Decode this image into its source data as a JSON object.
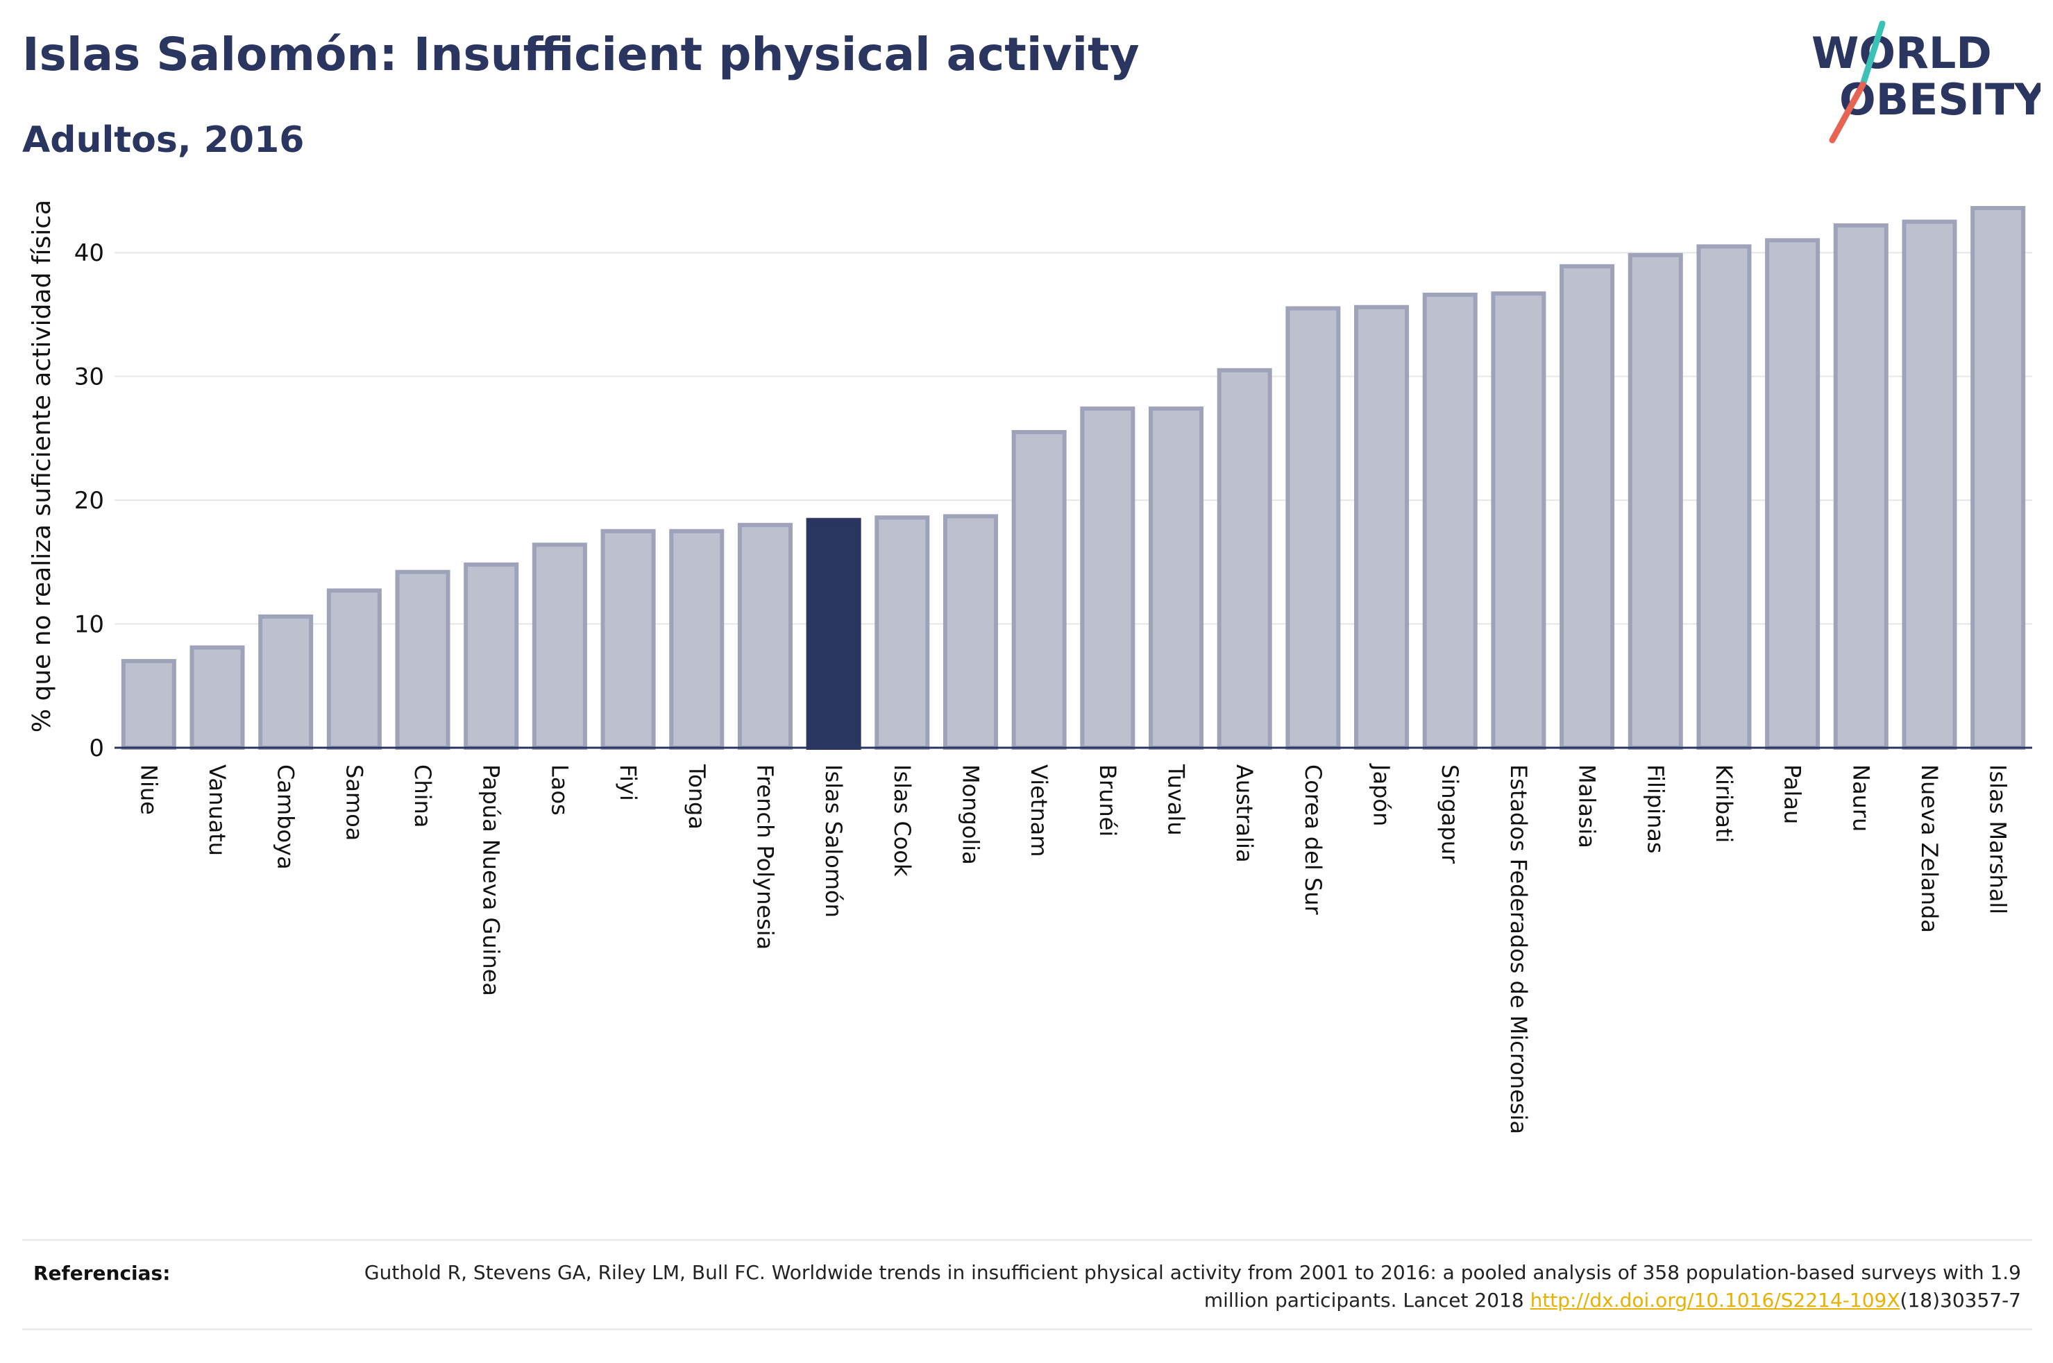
{
  "chart_data": {
    "type": "bar",
    "title": "Islas Salomón: Insufficient physical activity",
    "subtitle": "Adultos, 2016",
    "ylabel": "% que no realiza suficiente actividad física",
    "xlabel": "",
    "ylim": [
      0,
      45
    ],
    "yticks": [
      0,
      10,
      20,
      30,
      40
    ],
    "grid": true,
    "highlight": "Islas Salomón",
    "categories": [
      "Niue",
      "Vanuatu",
      "Camboya",
      "Samoa",
      "China",
      "Papúa Nueva Guinea",
      "Laos",
      "Fiyi",
      "Tonga",
      "French Polynesia",
      "Islas Salomón",
      "Islas Cook",
      "Mongolia",
      "Vietnam",
      "Brunéi",
      "Tuvalu",
      "Australia",
      "Corea del Sur",
      "Japón",
      "Singapur",
      "Estados Federados de Micronesia",
      "Malasia",
      "Filipinas",
      "Kiribati",
      "Palau",
      "Nauru",
      "Nueva Zelanda",
      "Islas Marshall"
    ],
    "values": [
      7.0,
      8.1,
      10.6,
      12.7,
      14.2,
      14.8,
      16.4,
      17.5,
      17.5,
      18.0,
      18.4,
      18.6,
      18.7,
      25.5,
      27.4,
      27.4,
      30.5,
      35.5,
      35.6,
      36.6,
      36.7,
      38.9,
      39.8,
      40.5,
      41.0,
      42.2,
      42.5,
      43.6
    ]
  },
  "colors": {
    "bar": "#bdc0ce",
    "bar_border": "#9ea3ba",
    "highlight": "#2a3560",
    "title": "#2a3560",
    "grid": "#e6e6e6",
    "link": "#e8b000"
  },
  "logo": {
    "line1": "WORLD",
    "line2": "OBESITY",
    "slash_color_top": "#3cc1b7",
    "slash_color_bottom": "#e86452"
  },
  "footer": {
    "references_label": "Referencias:",
    "reference_text": "Guthold R, Stevens GA, Riley LM, Bull FC. Worldwide trends in insufficient physical activity from 2001 to 2016: a pooled analysis of 358 population-based surveys with 1.9 million participants. Lancet 2018 ",
    "reference_link": "http://dx.doi.org/10.1016/S2214-109X",
    "reference_suffix": "(18)30357-7"
  }
}
